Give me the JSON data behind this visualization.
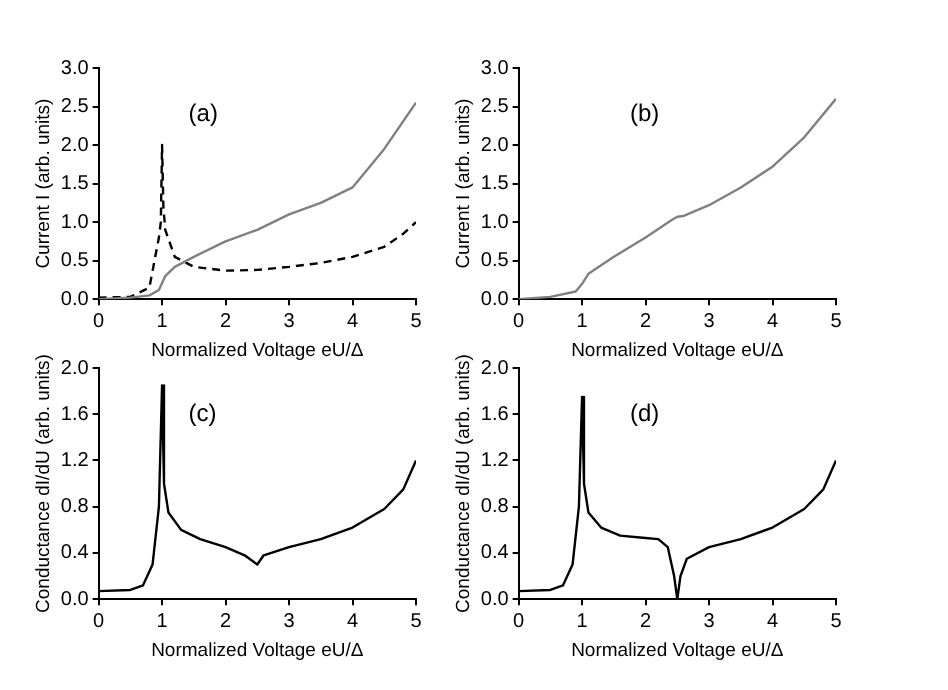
{
  "chart_data": [
    {
      "type": "line",
      "annotations": [
        "(a)"
      ],
      "xlabel": "Normalized Voltage eU/Δ",
      "ylabel": "Current I (arb. units)",
      "xlim": [
        0,
        5
      ],
      "xticks": [
        0,
        1,
        2,
        3,
        4,
        5
      ],
      "ylim": [
        0,
        3
      ],
      "yticks": [
        {
          "value": 0,
          "label": "0.0"
        },
        0.5,
        {
          "value": 1,
          "label": "1.0"
        },
        1.5,
        {
          "value": 2,
          "label": "2.0"
        },
        2.5,
        {
          "value": 3,
          "label": "3.0"
        }
      ],
      "marker": "none",
      "legend": false,
      "grid": false,
      "series": [
        {
          "color": "#808080",
          "line_style": "solid",
          "x": [
            0,
            0.5,
            0.8,
            0.95,
            1.05,
            1.2,
            1.5,
            2,
            2.5,
            3,
            3.5,
            4,
            4.5,
            5
          ],
          "values": [
            0,
            0.02,
            0.05,
            0.12,
            0.3,
            0.42,
            0.55,
            0.75,
            0.9,
            1.1,
            1.25,
            1.45,
            1.95,
            2.55
          ]
        },
        {
          "color": "#000000",
          "line_style": "dashed",
          "x": [
            0,
            0.5,
            0.8,
            0.95,
            0.98,
            1,
            1.02,
            1.05,
            1.2,
            1.5,
            2,
            2.5,
            3,
            3.5,
            4,
            4.5,
            4.8,
            5
          ],
          "values": [
            0.02,
            0.03,
            0.15,
            0.8,
            1.0,
            2.0,
            1.2,
            0.9,
            0.55,
            0.42,
            0.37,
            0.38,
            0.42,
            0.47,
            0.55,
            0.68,
            0.85,
            1.0
          ]
        }
      ]
    },
    {
      "type": "line",
      "annotations": [
        "(b)"
      ],
      "xlabel": "Normalized Voltage eU/Δ",
      "ylabel": "Current I (arb. units)",
      "xlim": [
        0,
        5
      ],
      "xticks": [
        0,
        1,
        2,
        3,
        4,
        5
      ],
      "ylim": [
        0,
        3
      ],
      "yticks": [
        {
          "value": 0,
          "label": "0.0"
        },
        0.5,
        {
          "value": 1,
          "label": "1.0"
        },
        1.5,
        {
          "value": 2,
          "label": "2.0"
        },
        2.5,
        {
          "value": 3,
          "label": "3.0"
        }
      ],
      "marker": "none",
      "legend": false,
      "grid": false,
      "series": [
        {
          "color": "#808080",
          "line_style": "solid",
          "x": [
            0,
            0.5,
            0.9,
            1,
            1.1,
            1.5,
            2,
            2.4,
            2.5,
            2.6,
            3,
            3.5,
            4,
            4.5,
            5
          ],
          "values": [
            0,
            0.03,
            0.1,
            0.2,
            0.33,
            0.55,
            0.8,
            1.02,
            1.07,
            1.08,
            1.22,
            1.45,
            1.72,
            2.1,
            2.6
          ]
        }
      ]
    },
    {
      "type": "line",
      "annotations": [
        "(c)"
      ],
      "xlabel": "Normalized Voltage eU/Δ",
      "ylabel": "Conductance dI/dU (arb. units)",
      "xlim": [
        0,
        5
      ],
      "xticks": [
        0,
        1,
        2,
        3,
        4,
        5
      ],
      "ylim": [
        0,
        2
      ],
      "yticks": [
        {
          "value": 0,
          "label": "0.0"
        },
        0.4,
        0.8,
        1.2,
        1.6,
        {
          "value": 2,
          "label": "2.0"
        }
      ],
      "marker": "none",
      "legend": false,
      "grid": false,
      "series": [
        {
          "color": "#000000",
          "line_style": "solid",
          "x": [
            0,
            0.5,
            0.7,
            0.85,
            0.95,
            1,
            1.03,
            1.1,
            1.3,
            1.6,
            2,
            2.3,
            2.5,
            2.6,
            3,
            3.5,
            4,
            4.5,
            4.8,
            5
          ],
          "values": [
            0.07,
            0.08,
            0.12,
            0.3,
            0.8,
            1.85,
            1.0,
            0.75,
            0.6,
            0.52,
            0.45,
            0.38,
            0.3,
            0.38,
            0.45,
            0.52,
            0.62,
            0.78,
            0.95,
            1.2
          ]
        }
      ]
    },
    {
      "type": "line",
      "annotations": [
        "(d)"
      ],
      "xlabel": "Normalized Voltage eU/Δ",
      "ylabel": "Conductance dI/dU (arb. units)",
      "xlim": [
        0,
        5
      ],
      "xticks": [
        0,
        1,
        2,
        3,
        4,
        5
      ],
      "ylim": [
        0,
        2
      ],
      "yticks": [
        {
          "value": 0,
          "label": "0.0"
        },
        0.4,
        0.8,
        1.2,
        1.6,
        {
          "value": 2,
          "label": "2.0"
        }
      ],
      "marker": "none",
      "legend": false,
      "grid": false,
      "series": [
        {
          "color": "#000000",
          "line_style": "solid",
          "x": [
            0,
            0.5,
            0.7,
            0.85,
            0.95,
            1,
            1.03,
            1.1,
            1.3,
            1.6,
            2,
            2.2,
            2.35,
            2.45,
            2.5,
            2.55,
            2.65,
            3,
            3.5,
            4,
            4.5,
            4.8,
            5
          ],
          "values": [
            0.07,
            0.08,
            0.12,
            0.3,
            0.8,
            1.75,
            1.0,
            0.75,
            0.62,
            0.55,
            0.53,
            0.52,
            0.45,
            0.2,
            0,
            0.2,
            0.35,
            0.45,
            0.52,
            0.62,
            0.78,
            0.95,
            1.2
          ]
        }
      ]
    }
  ]
}
